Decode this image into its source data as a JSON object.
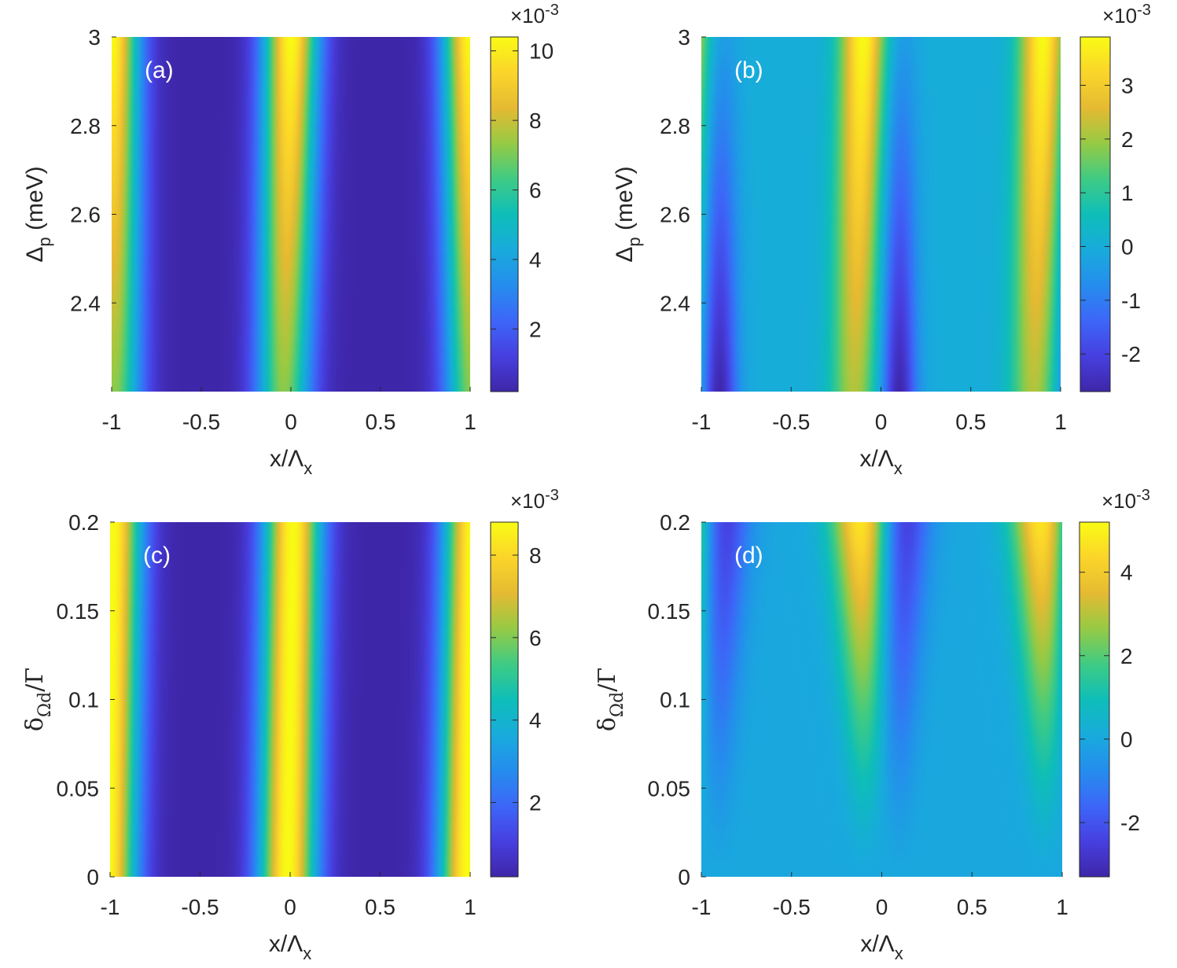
{
  "chart_data": [
    {
      "type": "heatmap",
      "panel_label": "(a)",
      "xlabel": "x/Λ_x",
      "ylabel": "Δ_p (meV)",
      "xlim": [
        -1,
        1
      ],
      "ylim": [
        2.2,
        3.0
      ],
      "x_ticks": [
        -1,
        -0.5,
        0,
        0.5,
        1
      ],
      "x_tick_labels": [
        "-1",
        "-0.5",
        "0",
        "0.5",
        "1"
      ],
      "y_ticks": [
        2.4,
        2.6,
        2.8,
        3.0
      ],
      "y_tick_labels": [
        "2.4",
        "2.6",
        "2.8",
        "3"
      ],
      "colorbar": {
        "range": [
          0.0002,
          0.0104
        ],
        "ticks": [
          0.002,
          0.004,
          0.006,
          0.008,
          0.01
        ],
        "tick_labels": [
          "2",
          "4",
          "6",
          "8",
          "10"
        ],
        "scale_label": "×10^-3"
      },
      "field": {
        "description": "two bright bands near x=0 and x=±1, dark between; bands shift slightly with y",
        "peaks_x": [
          -1,
          0,
          1
        ],
        "peak_tilt_per_unit_y": 0.08,
        "peak_value": 0.0104,
        "min_value": 0.0002,
        "width": 0.14,
        "peak_value_low_y": 0.0072
      }
    },
    {
      "type": "heatmap",
      "panel_label": "(b)",
      "xlabel": "x/Λ_x",
      "ylabel": "Δ_p (meV)",
      "xlim": [
        -1,
        1
      ],
      "ylim": [
        2.2,
        3.0
      ],
      "x_ticks": [
        -1,
        -0.5,
        0,
        0.5,
        1
      ],
      "x_tick_labels": [
        "-1",
        "-0.5",
        "0",
        "0.5",
        "1"
      ],
      "y_ticks": [
        2.4,
        2.6,
        2.8,
        3.0
      ],
      "y_tick_labels": [
        "2.4",
        "2.6",
        "2.8",
        "3"
      ],
      "colorbar": {
        "range": [
          -0.0027,
          0.0039
        ],
        "ticks": [
          -0.002,
          -0.001,
          0,
          0.001,
          0.002,
          0.003
        ],
        "tick_labels": [
          "-2",
          "-1",
          "0",
          "1",
          "2",
          "3"
        ],
        "scale_label": "×10^-3"
      },
      "field": {
        "description": "positive bands near x=-0.1 and x=0.9, negative dips near x=0.1 and x=-0.9",
        "pos_peaks_x": [
          -0.1,
          0.9
        ],
        "neg_peaks_x": [
          0.1,
          -0.9
        ],
        "peak_value": 0.0039,
        "min_value": -0.0027,
        "background": 0.0
      }
    },
    {
      "type": "heatmap",
      "panel_label": "(c)",
      "xlabel": "x/Λ_x",
      "ylabel": "δ_Ωd/Γ",
      "xlim": [
        -1,
        1
      ],
      "ylim": [
        0,
        0.2
      ],
      "x_ticks": [
        -1,
        -0.5,
        0,
        0.5,
        1
      ],
      "x_tick_labels": [
        "-1",
        "-0.5",
        "0",
        "0.5",
        "1"
      ],
      "y_ticks": [
        0,
        0.05,
        0.1,
        0.15,
        0.2
      ],
      "y_tick_labels": [
        "0",
        "0.05",
        "0.1",
        "0.15",
        "0.2"
      ],
      "colorbar": {
        "range": [
          0.0002,
          0.0088
        ],
        "ticks": [
          0.002,
          0.004,
          0.006,
          0.008
        ],
        "tick_labels": [
          "2",
          "4",
          "6",
          "8"
        ],
        "scale_label": "×10^-3"
      },
      "field": {
        "description": "bright bands near x=-1, 0, 1 of nearly constant intensity, slight tilt",
        "peaks_x": [
          -1,
          0,
          1
        ],
        "peak_value": 0.0088,
        "min_value": 0.0002
      }
    },
    {
      "type": "heatmap",
      "panel_label": "(d)",
      "xlabel": "x/Λ_x",
      "ylabel": "δ_Ωd/Γ",
      "xlim": [
        -1,
        1
      ],
      "ylim": [
        0,
        0.2
      ],
      "x_ticks": [
        -1,
        -0.5,
        0,
        0.5,
        1
      ],
      "x_tick_labels": [
        "-1",
        "-0.5",
        "0",
        "0.5",
        "1"
      ],
      "y_ticks": [
        0,
        0.05,
        0.1,
        0.15,
        0.2
      ],
      "y_tick_labels": [
        "0",
        "0.05",
        "0.1",
        "0.15",
        "0.2"
      ],
      "colorbar": {
        "range": [
          -0.0033,
          0.0052
        ],
        "ticks": [
          -0.002,
          0,
          0.002,
          0.004
        ],
        "tick_labels": [
          "-2",
          "0",
          "2",
          "4"
        ],
        "scale_label": "×10^-3"
      },
      "field": {
        "description": "features grow with y: positive near x=-0.1 and x=0.9, negative near x=0.1 and x=-0.9",
        "pos_peaks_x": [
          -0.1,
          0.9
        ],
        "neg_peaks_x": [
          0.1,
          -0.9
        ],
        "peak_value": 0.0052,
        "min_value": -0.0033,
        "background": 0.0
      }
    }
  ]
}
